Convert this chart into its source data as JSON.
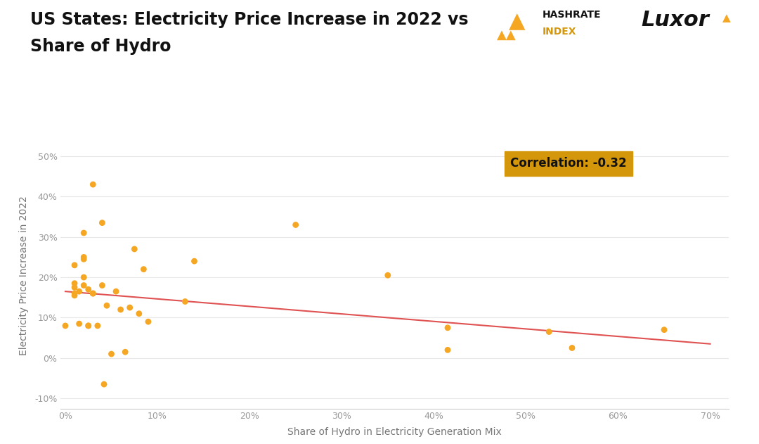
{
  "title_line1": "US States: Electricity Price Increase in 2022 vs",
  "title_line2": "Share of Hydro",
  "xlabel": "Share of Hydro in Electricity Generation Mix",
  "ylabel": "Electricity Price Increase in 2022",
  "correlation": "Correlation: -0.32",
  "dot_color": "#F5A623",
  "line_color": "#E05252",
  "background_color": "#FFFFFF",
  "xlim": [
    -0.005,
    0.72
  ],
  "ylim": [
    -0.125,
    0.535
  ],
  "xticks": [
    0.0,
    0.1,
    0.2,
    0.3,
    0.4,
    0.5,
    0.6,
    0.7
  ],
  "yticks": [
    -0.1,
    0.0,
    0.1,
    0.2,
    0.3,
    0.4,
    0.5
  ],
  "scatter_x": [
    0.0,
    0.01,
    0.01,
    0.01,
    0.01,
    0.01,
    0.015,
    0.015,
    0.02,
    0.02,
    0.02,
    0.02,
    0.02,
    0.025,
    0.025,
    0.025,
    0.03,
    0.03,
    0.03,
    0.035,
    0.04,
    0.04,
    0.045,
    0.05,
    0.055,
    0.06,
    0.07,
    0.075,
    0.08,
    0.085,
    0.09,
    0.13,
    0.14,
    0.25,
    0.35,
    0.415,
    0.415,
    0.525,
    0.55,
    0.65
  ],
  "scatter_y": [
    0.08,
    0.23,
    0.185,
    0.175,
    0.16,
    0.155,
    0.165,
    0.085,
    0.31,
    0.25,
    0.245,
    0.2,
    0.18,
    0.17,
    0.08,
    0.08,
    0.43,
    0.16,
    0.16,
    0.08,
    0.335,
    0.18,
    0.13,
    0.01,
    0.165,
    0.12,
    0.125,
    0.27,
    0.11,
    0.22,
    0.09,
    0.14,
    0.24,
    0.33,
    0.205,
    0.02,
    0.075,
    0.065,
    0.025,
    0.07
  ],
  "extra_points_x": [
    0.042,
    0.065
  ],
  "extra_points_y": [
    -0.065,
    0.015
  ],
  "line_x_start": 0.0,
  "line_x_end": 0.7,
  "line_y_start": 0.165,
  "line_y_end": 0.035,
  "corr_box_color": "#D4960A",
  "corr_text_color": "#111111",
  "title_fontsize": 17,
  "axis_label_fontsize": 10,
  "tick_fontsize": 9,
  "corr_fontsize": 12
}
